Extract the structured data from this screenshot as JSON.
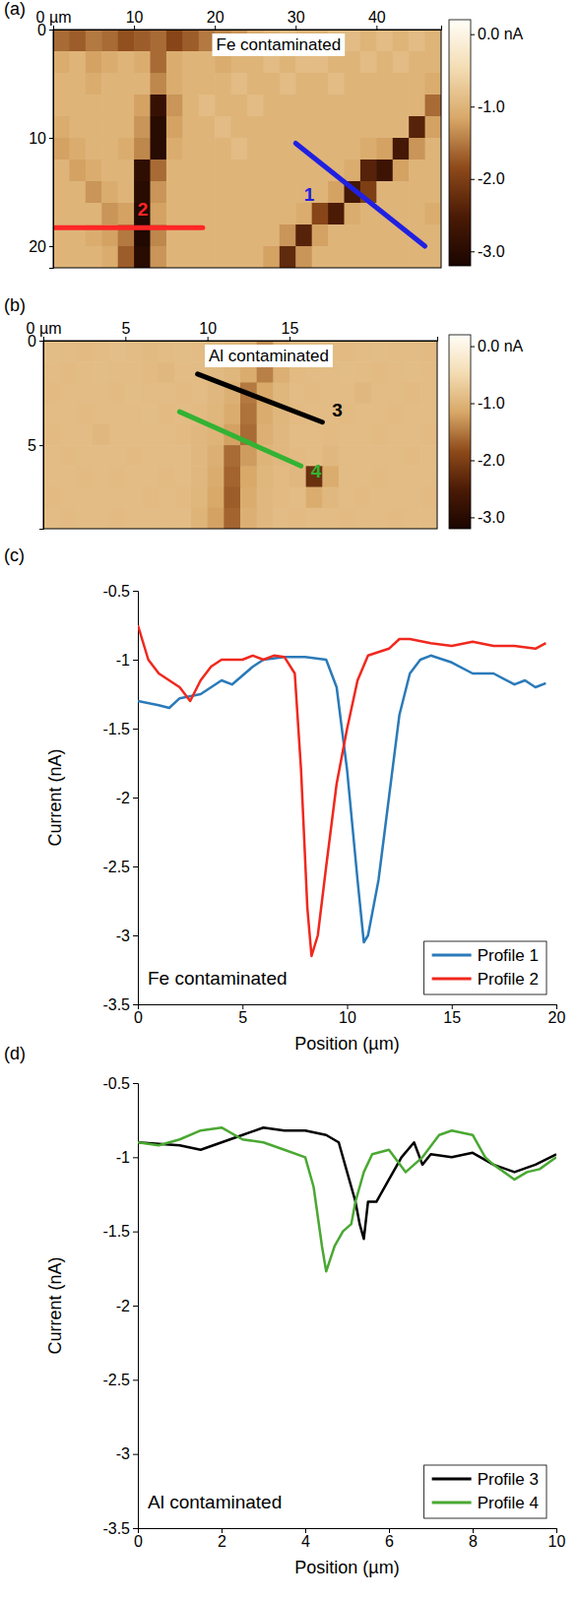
{
  "chart_data": [
    {
      "type": "heatmap",
      "panel": "(a)",
      "annotation": "Fe contaminated",
      "xlim": [
        0,
        48
      ],
      "ylim": [
        0,
        22
      ],
      "xticks": [
        {
          "value": 0,
          "label": "0 µm"
        },
        10,
        20,
        30,
        40
      ],
      "yticks": [
        0,
        10,
        20
      ],
      "cells": [
        [
          -1.6,
          -1.7,
          -1.5,
          -1.6,
          -1.8,
          -1.7,
          -1.6,
          -1.9,
          -1.7,
          -1.5,
          -1.4,
          -1.3,
          -1.1,
          -1.0,
          -0.9,
          -1.0,
          -1.0,
          -0.9,
          -0.9,
          -1.0,
          -0.9,
          -1.0,
          -0.9,
          -1.0
        ],
        [
          -1.1,
          -1.0,
          -1.2,
          -1.1,
          -1.0,
          -1.1,
          -1.6,
          -1.1,
          -1.0,
          -1.0,
          -1.1,
          -1.0,
          -1.0,
          -0.9,
          -1.0,
          -0.9,
          -0.9,
          -1.0,
          -1.0,
          -0.9,
          -1.0,
          -0.9,
          -1.0,
          -1.0
        ],
        [
          -1.0,
          -1.0,
          -1.1,
          -1.0,
          -1.0,
          -1.0,
          -1.4,
          -1.1,
          -1.0,
          -1.0,
          -1.0,
          -0.9,
          -1.0,
          -1.0,
          -0.9,
          -1.0,
          -1.0,
          -0.9,
          -1.0,
          -1.0,
          -1.0,
          -1.0,
          -1.0,
          -1.1
        ],
        [
          -1.0,
          -1.0,
          -1.0,
          -1.0,
          -1.0,
          -1.2,
          -2.8,
          -1.3,
          -1.0,
          -0.9,
          -1.0,
          -1.0,
          -0.9,
          -1.0,
          -1.0,
          -1.0,
          -1.0,
          -1.0,
          -1.0,
          -1.0,
          -1.0,
          -1.0,
          -1.0,
          -1.6
        ],
        [
          -1.1,
          -1.0,
          -1.0,
          -1.0,
          -1.0,
          -1.3,
          -3.0,
          -1.2,
          -1.0,
          -1.0,
          -0.9,
          -1.0,
          -1.0,
          -1.0,
          -1.0,
          -1.0,
          -1.0,
          -1.0,
          -1.0,
          -1.0,
          -1.0,
          -1.0,
          -2.4,
          -1.2
        ],
        [
          -1.2,
          -1.1,
          -1.0,
          -1.0,
          -1.1,
          -1.4,
          -3.0,
          -1.1,
          -1.0,
          -1.0,
          -1.0,
          -0.9,
          -1.0,
          -1.0,
          -1.0,
          -1.0,
          -1.0,
          -1.0,
          -1.0,
          -1.1,
          -1.2,
          -2.6,
          -1.3,
          -1.0
        ],
        [
          -1.0,
          -1.2,
          -1.1,
          -1.0,
          -1.0,
          -2.9,
          -1.6,
          -1.0,
          -1.0,
          -1.0,
          -1.0,
          -1.0,
          -1.0,
          -1.0,
          -1.0,
          -1.0,
          -1.0,
          -1.0,
          -1.1,
          -2.4,
          -2.7,
          -1.2,
          -1.0,
          -1.0
        ],
        [
          -1.0,
          -1.0,
          -1.3,
          -1.1,
          -1.0,
          -3.0,
          -1.3,
          -1.0,
          -1.0,
          -1.0,
          -1.0,
          -1.0,
          -1.0,
          -1.0,
          -1.0,
          -1.0,
          -1.0,
          -1.2,
          -2.6,
          -2.0,
          -1.0,
          -1.0,
          -1.0,
          -1.0
        ],
        [
          -1.0,
          -1.0,
          -1.0,
          -1.3,
          -1.2,
          -3.1,
          -1.2,
          -1.0,
          -1.0,
          -1.0,
          -1.0,
          -1.0,
          -1.0,
          -1.0,
          -1.0,
          -1.1,
          -1.9,
          -2.5,
          -1.1,
          -1.0,
          -1.0,
          -1.0,
          -1.0,
          -1.1
        ],
        [
          -1.0,
          -1.0,
          -1.1,
          -1.2,
          -1.5,
          -3.1,
          -1.4,
          -1.0,
          -1.0,
          -1.0,
          -1.0,
          -1.0,
          -1.0,
          -1.0,
          -1.3,
          -2.4,
          -1.2,
          -1.0,
          -1.0,
          -1.0,
          -1.0,
          -1.0,
          -1.0,
          -1.0
        ],
        [
          -1.0,
          -1.0,
          -1.0,
          -1.1,
          -1.7,
          -3.0,
          -1.3,
          -1.0,
          -1.0,
          -1.0,
          -1.0,
          -1.0,
          -1.0,
          -1.2,
          -2.3,
          -1.3,
          -1.0,
          -1.0,
          -1.0,
          -1.0,
          -1.0,
          -1.0,
          -1.0,
          -1.0
        ]
      ],
      "colorbar": {
        "range": [
          -3.2,
          0.2
        ],
        "ticks": [
          {
            "value": 0,
            "label": "0.0 nA"
          },
          {
            "value": -1,
            "label": "-1.0"
          },
          {
            "value": -2,
            "label": "-2.0"
          },
          {
            "value": -3,
            "label": "-3.0"
          }
        ]
      },
      "profiles": [
        {
          "label": "1",
          "color": "#2020e0",
          "x": [
            30,
            46
          ],
          "y": [
            10.5,
            20
          ]
        },
        {
          "label": "2",
          "color": "#ff2626",
          "x": [
            0,
            18.5
          ],
          "y": [
            18.3,
            18.3
          ]
        }
      ]
    },
    {
      "type": "heatmap",
      "panel": "(b)",
      "annotation": "Al contaminated",
      "xlim": [
        0,
        24
      ],
      "ylim": [
        0,
        9
      ],
      "xticks": [
        {
          "value": 0,
          "label": "0 µm"
        },
        5,
        10,
        15
      ],
      "yticks": [
        0,
        5
      ],
      "cells": [
        [
          -0.88,
          -0.9,
          -0.92,
          -0.9,
          -0.87,
          -0.9,
          -0.93,
          -0.9,
          -0.88,
          -0.9,
          -0.92,
          -0.95,
          -1.05,
          -1.35,
          -1.0,
          -0.9,
          -0.88,
          -0.9,
          -0.92,
          -0.9,
          -0.88,
          -0.9,
          -0.9,
          -0.92
        ],
        [
          -0.9,
          -0.92,
          -0.9,
          -0.88,
          -0.9,
          -0.9,
          -0.92,
          -0.95,
          -0.9,
          -0.9,
          -0.93,
          -0.98,
          -1.1,
          -1.45,
          -1.05,
          -0.92,
          -0.9,
          -0.9,
          -0.88,
          -0.9,
          -0.92,
          -0.9,
          -0.88,
          -0.9
        ],
        [
          -0.92,
          -0.9,
          -0.9,
          -0.9,
          -0.92,
          -0.88,
          -0.9,
          -0.9,
          -0.92,
          -0.9,
          -0.95,
          -1.05,
          -1.5,
          -1.15,
          -0.98,
          -0.9,
          -0.92,
          -0.9,
          -0.9,
          -0.95,
          -0.9,
          -0.9,
          -0.92,
          -0.9
        ],
        [
          -0.9,
          -0.9,
          -0.92,
          -0.9,
          -0.9,
          -0.9,
          -0.88,
          -0.92,
          -0.9,
          -0.92,
          -0.98,
          -1.1,
          -1.55,
          -1.1,
          -0.98,
          -0.92,
          -0.9,
          -0.9,
          -0.92,
          -0.9,
          -0.9,
          -0.92,
          -0.9,
          -0.9
        ],
        [
          -0.92,
          -0.9,
          -0.9,
          -0.95,
          -0.9,
          -0.9,
          -0.9,
          -0.9,
          -0.92,
          -0.95,
          -1.0,
          -1.2,
          -1.6,
          -1.05,
          -0.95,
          -0.9,
          -0.9,
          -0.92,
          -0.9,
          -0.9,
          -0.92,
          -0.9,
          -0.9,
          -0.92
        ],
        [
          -0.9,
          -0.92,
          -0.9,
          -0.9,
          -0.9,
          -0.92,
          -0.9,
          -0.9,
          -0.9,
          -0.95,
          -1.05,
          -1.6,
          -1.25,
          -1.0,
          -0.95,
          -0.92,
          -0.9,
          -0.95,
          -0.9,
          -0.9,
          -0.9,
          -0.9,
          -0.92,
          -0.9
        ],
        [
          -0.9,
          -0.9,
          -0.92,
          -0.9,
          -0.92,
          -0.9,
          -0.9,
          -0.92,
          -0.9,
          -0.95,
          -1.1,
          -1.65,
          -1.15,
          -0.98,
          -0.92,
          -0.95,
          -2.2,
          -1.1,
          -0.9,
          -0.9,
          -0.92,
          -0.9,
          -0.9,
          -0.9
        ],
        [
          -0.92,
          -0.9,
          -0.9,
          -0.9,
          -0.9,
          -0.9,
          -0.92,
          -0.9,
          -0.92,
          -0.98,
          -1.15,
          -1.7,
          -1.1,
          -0.95,
          -0.92,
          -0.9,
          -1.1,
          -0.95,
          -0.9,
          -0.92,
          -0.9,
          -0.9,
          -0.9,
          -0.92
        ],
        [
          -0.9,
          -0.92,
          -0.9,
          -0.9,
          -0.92,
          -0.9,
          -0.9,
          -0.9,
          -0.9,
          -1.0,
          -1.2,
          -1.65,
          -1.05,
          -0.95,
          -0.9,
          -0.92,
          -0.9,
          -0.9,
          -0.92,
          -0.9,
          -0.9,
          -0.92,
          -0.9,
          -0.9
        ]
      ],
      "colorbar": {
        "range": [
          -3.2,
          0.2
        ],
        "ticks": [
          {
            "value": 0,
            "label": "0.0 nA"
          },
          {
            "value": -1,
            "label": "-1.0"
          },
          {
            "value": -2,
            "label": "-2.0"
          },
          {
            "value": -3,
            "label": "-3.0"
          }
        ]
      },
      "profiles": [
        {
          "label": "3",
          "color": "#000000",
          "x": [
            9.4,
            17
          ],
          "y": [
            1.6,
            3.9
          ]
        },
        {
          "label": "4",
          "color": "#33b233",
          "x": [
            8.3,
            15.7
          ],
          "y": [
            3.4,
            6.0
          ]
        }
      ]
    },
    {
      "type": "line",
      "panel": "(c)",
      "annotation": "Fe contaminated",
      "x_label": "Position (µm)",
      "y_label": "Current (nA)",
      "xlim": [
        0,
        20
      ],
      "ylim": [
        -3.5,
        -0.5
      ],
      "xticks": [
        0,
        5,
        10,
        15,
        20
      ],
      "yticks": [
        -3.5,
        -3,
        -2.5,
        -2,
        -1.5,
        -1,
        -0.5
      ],
      "legend": "lower right",
      "series": [
        {
          "name": "Profile 1",
          "color": "#2a7ab9",
          "x": [
            0,
            1,
            1.5,
            2,
            3,
            4,
            4.5,
            5.5,
            6,
            7,
            8,
            9,
            9.5,
            10,
            10.5,
            10.8,
            11,
            11.5,
            12,
            12.5,
            13,
            13.5,
            14,
            15,
            16,
            17,
            18,
            18.5,
            19,
            19.5
          ],
          "values": [
            -1.3,
            -1.33,
            -1.35,
            -1.28,
            -1.25,
            -1.15,
            -1.18,
            -1.05,
            -1.0,
            -0.98,
            -0.98,
            -1.0,
            -1.2,
            -1.8,
            -2.6,
            -3.05,
            -3.0,
            -2.6,
            -2.0,
            -1.4,
            -1.1,
            -1.0,
            -0.97,
            -1.02,
            -1.1,
            -1.1,
            -1.18,
            -1.15,
            -1.2,
            -1.17
          ]
        },
        {
          "name": "Profile 2",
          "color": "#f0281e",
          "x": [
            0,
            0.5,
            1,
            1.5,
            2,
            2.5,
            3,
            3.5,
            4,
            5,
            5.5,
            6,
            6.5,
            7,
            7.5,
            7.8,
            8.1,
            8.3,
            8.6,
            9,
            9.5,
            10,
            10.5,
            11,
            12,
            12.5,
            13,
            14,
            15,
            16,
            17,
            18,
            19,
            19.5
          ],
          "values": [
            -0.75,
            -1.0,
            -1.1,
            -1.15,
            -1.2,
            -1.3,
            -1.15,
            -1.05,
            -1.0,
            -1.0,
            -0.97,
            -1.0,
            -0.97,
            -0.98,
            -1.1,
            -1.8,
            -2.8,
            -3.15,
            -3.0,
            -2.5,
            -1.9,
            -1.5,
            -1.15,
            -0.97,
            -0.92,
            -0.85,
            -0.85,
            -0.88,
            -0.9,
            -0.87,
            -0.9,
            -0.9,
            -0.92,
            -0.88
          ]
        }
      ]
    },
    {
      "type": "line",
      "panel": "(d)",
      "annotation": "Al contaminated",
      "x_label": "Position (µm)",
      "y_label": "Current (nA)",
      "xlim": [
        0,
        10
      ],
      "ylim": [
        -3.5,
        -0.5
      ],
      "xticks": [
        0,
        2,
        4,
        6,
        8,
        10
      ],
      "yticks": [
        -3.5,
        -3,
        -2.5,
        -2,
        -1.5,
        -1,
        -0.5
      ],
      "legend": "lower right",
      "series": [
        {
          "name": "Profile 3",
          "color": "#000000",
          "x": [
            0,
            1,
            1.5,
            2,
            2.5,
            3,
            3.5,
            4,
            4.5,
            4.8,
            5,
            5.2,
            5.3,
            5.4,
            5.5,
            5.7,
            6,
            6.3,
            6.6,
            6.8,
            7,
            7.5,
            8,
            8.5,
            9,
            9.5,
            10
          ],
          "values": [
            -0.9,
            -0.92,
            -0.95,
            -0.9,
            -0.85,
            -0.8,
            -0.82,
            -0.82,
            -0.85,
            -0.9,
            -1.1,
            -1.3,
            -1.45,
            -1.55,
            -1.3,
            -1.3,
            -1.15,
            -1.0,
            -0.9,
            -1.05,
            -0.98,
            -1.0,
            -0.97,
            -1.05,
            -1.1,
            -1.05,
            -0.98
          ]
        },
        {
          "name": "Profile 4",
          "color": "#4aa832",
          "x": [
            0,
            0.5,
            1,
            1.5,
            2,
            2.5,
            3,
            3.5,
            4,
            4.2,
            4.4,
            4.5,
            4.7,
            4.9,
            5.1,
            5.2,
            5.4,
            5.6,
            6,
            6.4,
            6.8,
            7.2,
            7.5,
            8,
            8.3,
            8.5,
            9,
            9.3,
            9.6,
            10
          ],
          "values": [
            -0.9,
            -0.92,
            -0.88,
            -0.82,
            -0.8,
            -0.88,
            -0.9,
            -0.95,
            -1.0,
            -1.2,
            -1.6,
            -1.77,
            -1.6,
            -1.5,
            -1.45,
            -1.3,
            -1.1,
            -0.98,
            -0.95,
            -1.1,
            -1.0,
            -0.85,
            -0.82,
            -0.85,
            -1.0,
            -1.05,
            -1.15,
            -1.1,
            -1.08,
            -1.0
          ]
        }
      ]
    }
  ]
}
